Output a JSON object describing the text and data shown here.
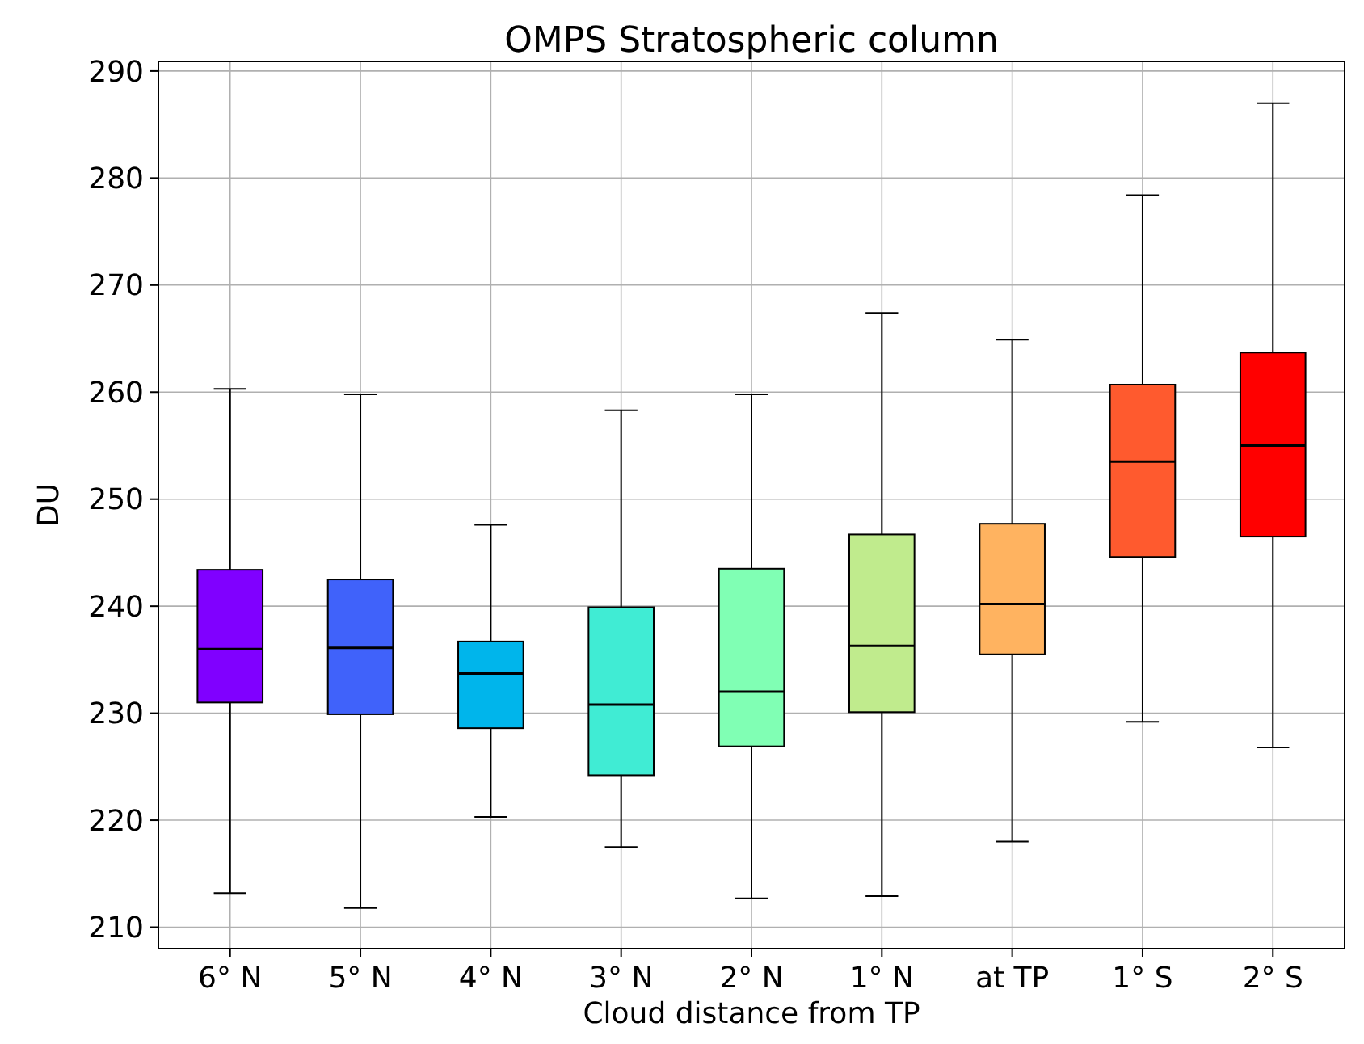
{
  "chart_data": {
    "type": "box",
    "title": "OMPS Stratospheric column",
    "xlabel": "Cloud distance from TP",
    "ylabel": "DU",
    "categories": [
      "6° N",
      "5° N",
      "4° N",
      "3° N",
      "2° N",
      "1° N",
      "at TP",
      "1° S",
      "2° S"
    ],
    "boxes": [
      {
        "low": 213.2,
        "q1": 231.0,
        "median": 236.0,
        "q3": 243.4,
        "high": 260.3
      },
      {
        "low": 211.8,
        "q1": 229.9,
        "median": 236.1,
        "q3": 242.5,
        "high": 259.8
      },
      {
        "low": 220.3,
        "q1": 228.6,
        "median": 233.7,
        "q3": 236.7,
        "high": 247.6
      },
      {
        "low": 217.5,
        "q1": 224.2,
        "median": 230.8,
        "q3": 239.9,
        "high": 258.3
      },
      {
        "low": 212.7,
        "q1": 226.9,
        "median": 232.0,
        "q3": 243.5,
        "high": 259.8
      },
      {
        "low": 212.9,
        "q1": 230.1,
        "median": 236.3,
        "q3": 246.7,
        "high": 267.4
      },
      {
        "low": 218.0,
        "q1": 235.5,
        "median": 240.2,
        "q3": 247.7,
        "high": 264.9
      },
      {
        "low": 229.2,
        "q1": 244.6,
        "median": 253.5,
        "q3": 260.7,
        "high": 278.4
      },
      {
        "low": 226.8,
        "q1": 246.5,
        "median": 255.0,
        "q3": 263.7,
        "high": 287.0
      }
    ],
    "colors": [
      "#8000ff",
      "#4062fa",
      "#00b5eb",
      "#40ecd4",
      "#80ffb4",
      "#c0eb8d",
      "#ffb360",
      "#ff5a2e",
      "#ff0000"
    ],
    "ylim": [
      208,
      290.9
    ],
    "yticks": [
      210,
      220,
      230,
      240,
      250,
      260,
      270,
      280,
      290
    ],
    "grid": true
  }
}
